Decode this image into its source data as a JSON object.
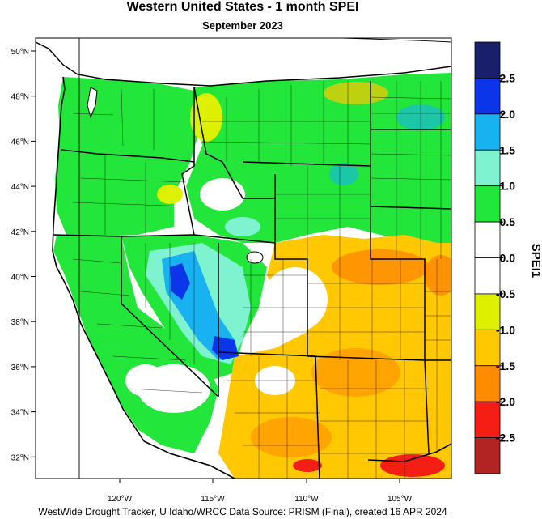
{
  "title": "Western United States - 1 month SPEI",
  "subtitle": "September 2023",
  "footer": "WestWide Drought Tracker, U Idaho/WRCC Data Source: PRISM (Final), created 16 APR 2024",
  "colorbar": {
    "title": "SPEI1",
    "bins": [
      {
        "color": "#1a1f6b"
      },
      {
        "color": "#0b35e8"
      },
      {
        "color": "#19b2f0"
      },
      {
        "color": "#7ff2d0"
      },
      {
        "color": "#22e63a"
      },
      {
        "color": "#ffffff"
      },
      {
        "color": "#ffffff"
      },
      {
        "color": "#ddf000"
      },
      {
        "color": "#ffc800"
      },
      {
        "color": "#ff8c00"
      },
      {
        "color": "#f51e14"
      },
      {
        "color": "#b22323"
      }
    ],
    "labels": [
      "2.5",
      "2.0",
      "1.5",
      "1.0",
      "0.5",
      "0.0",
      "-0.5",
      "-1.0",
      "-1.5",
      "-2.0",
      "-2.5"
    ]
  },
  "axes": {
    "lat_labels": [
      "50°N",
      "48°N",
      "46°N",
      "44°N",
      "42°N",
      "40°N",
      "38°N",
      "36°N",
      "34°N",
      "32°N"
    ],
    "lon_labels": [
      "120°W",
      "115°W",
      "110°W",
      "105°W"
    ]
  },
  "colors": {
    "green": "#22e63a",
    "aqua": "#7ff2d0",
    "lightblue": "#19b2f0",
    "blue": "#0b35e8",
    "yellow": "#ddf000",
    "gold": "#ffc800",
    "orange": "#ff8c00",
    "red": "#f51e14"
  }
}
